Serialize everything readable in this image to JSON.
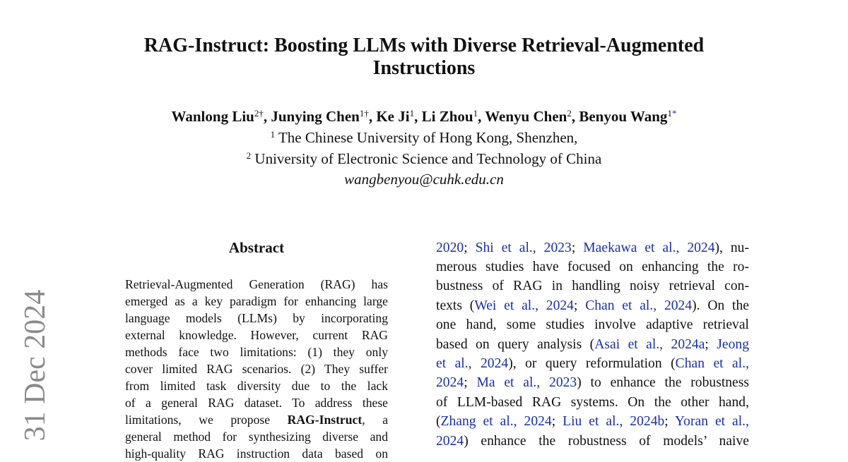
{
  "header": {
    "title_lines": [
      "RAG-Instruct: Boosting LLMs with Diverse Retrieval-Augmented",
      "Instructions"
    ],
    "authors": [
      "Wanlong Liu",
      {
        "sup": "2†"
      },
      ", Junying Chen",
      {
        "sup": "1†"
      },
      ", Ke Ji",
      {
        "sup": "1"
      },
      ", Li Zhou",
      {
        "sup": "1"
      },
      ", Wenyu Chen",
      {
        "sup": "2"
      },
      ", Benyou Wang",
      {
        "sup": "1"
      },
      {
        "sup_link": "*"
      }
    ],
    "affiliations": [
      [
        {
          "sup": "1"
        },
        " The Chinese University of Hong Kong, Shenzhen,"
      ],
      [
        {
          "sup": "2"
        },
        " University of Electronic Science and Technology of China"
      ]
    ],
    "email": "wangbenyou@cuhk.edu.cn"
  },
  "sidebar": "31 Dec 2024",
  "abstract": {
    "heading": "Abstract",
    "lines": [
      [
        "Retrieval-Augmented Generation (RAG) has"
      ],
      [
        "emerged as a key paradigm for enhancing large"
      ],
      [
        "language models (LLMs) by incorporating"
      ],
      [
        "external knowledge. However, current RAG"
      ],
      [
        "methods face two limitations: (1) they only"
      ],
      [
        "cover limited RAG scenarios. (2) They suffer"
      ],
      [
        "from limited task diversity due to the lack"
      ],
      [
        "of a general RAG dataset. To address these"
      ],
      [
        "limitations, we propose ",
        {
          "bold": "RAG-Instruct"
        },
        ", a"
      ],
      [
        "general method for synthesizing diverse and"
      ],
      [
        "high-quality RAG instruction data based on"
      ]
    ]
  },
  "right_column": {
    "lines": [
      [
        {
          "link": "2020"
        },
        "; ",
        {
          "link": "Shi et al., 2023"
        },
        "; ",
        {
          "link": "Maekawa et al., 2024"
        },
        "), nu-"
      ],
      [
        "merous studies have focused on enhancing the ro-"
      ],
      [
        "bustness of RAG in handling noisy retrieval con-"
      ],
      [
        "texts (",
        {
          "link": "Wei et al., 2024"
        },
        "; ",
        {
          "link": "Chan et al., 2024"
        },
        "). On the"
      ],
      [
        "one hand, some studies involve adaptive retrieval"
      ],
      [
        "based on query analysis (",
        {
          "link": "Asai et al., 2024a"
        },
        "; ",
        {
          "link": "Jeong"
        }
      ],
      [
        {
          "link": "et al., 2024"
        },
        "), or query reformulation (",
        {
          "link": "Chan et al.,"
        }
      ],
      [
        {
          "link": "2024"
        },
        "; ",
        {
          "link": "Ma et al., 2023"
        },
        ") to enhance the robustness"
      ],
      [
        "of LLM-based RAG systems. On the other hand,"
      ],
      [
        "(",
        {
          "link": "Zhang et al., 2024"
        },
        "; ",
        {
          "link": "Liu et al., 2024b"
        },
        "; ",
        {
          "link": "Yoran et al.,"
        }
      ],
      [
        {
          "link": "2024"
        },
        ") enhance the robustness of models’ naive"
      ]
    ]
  }
}
